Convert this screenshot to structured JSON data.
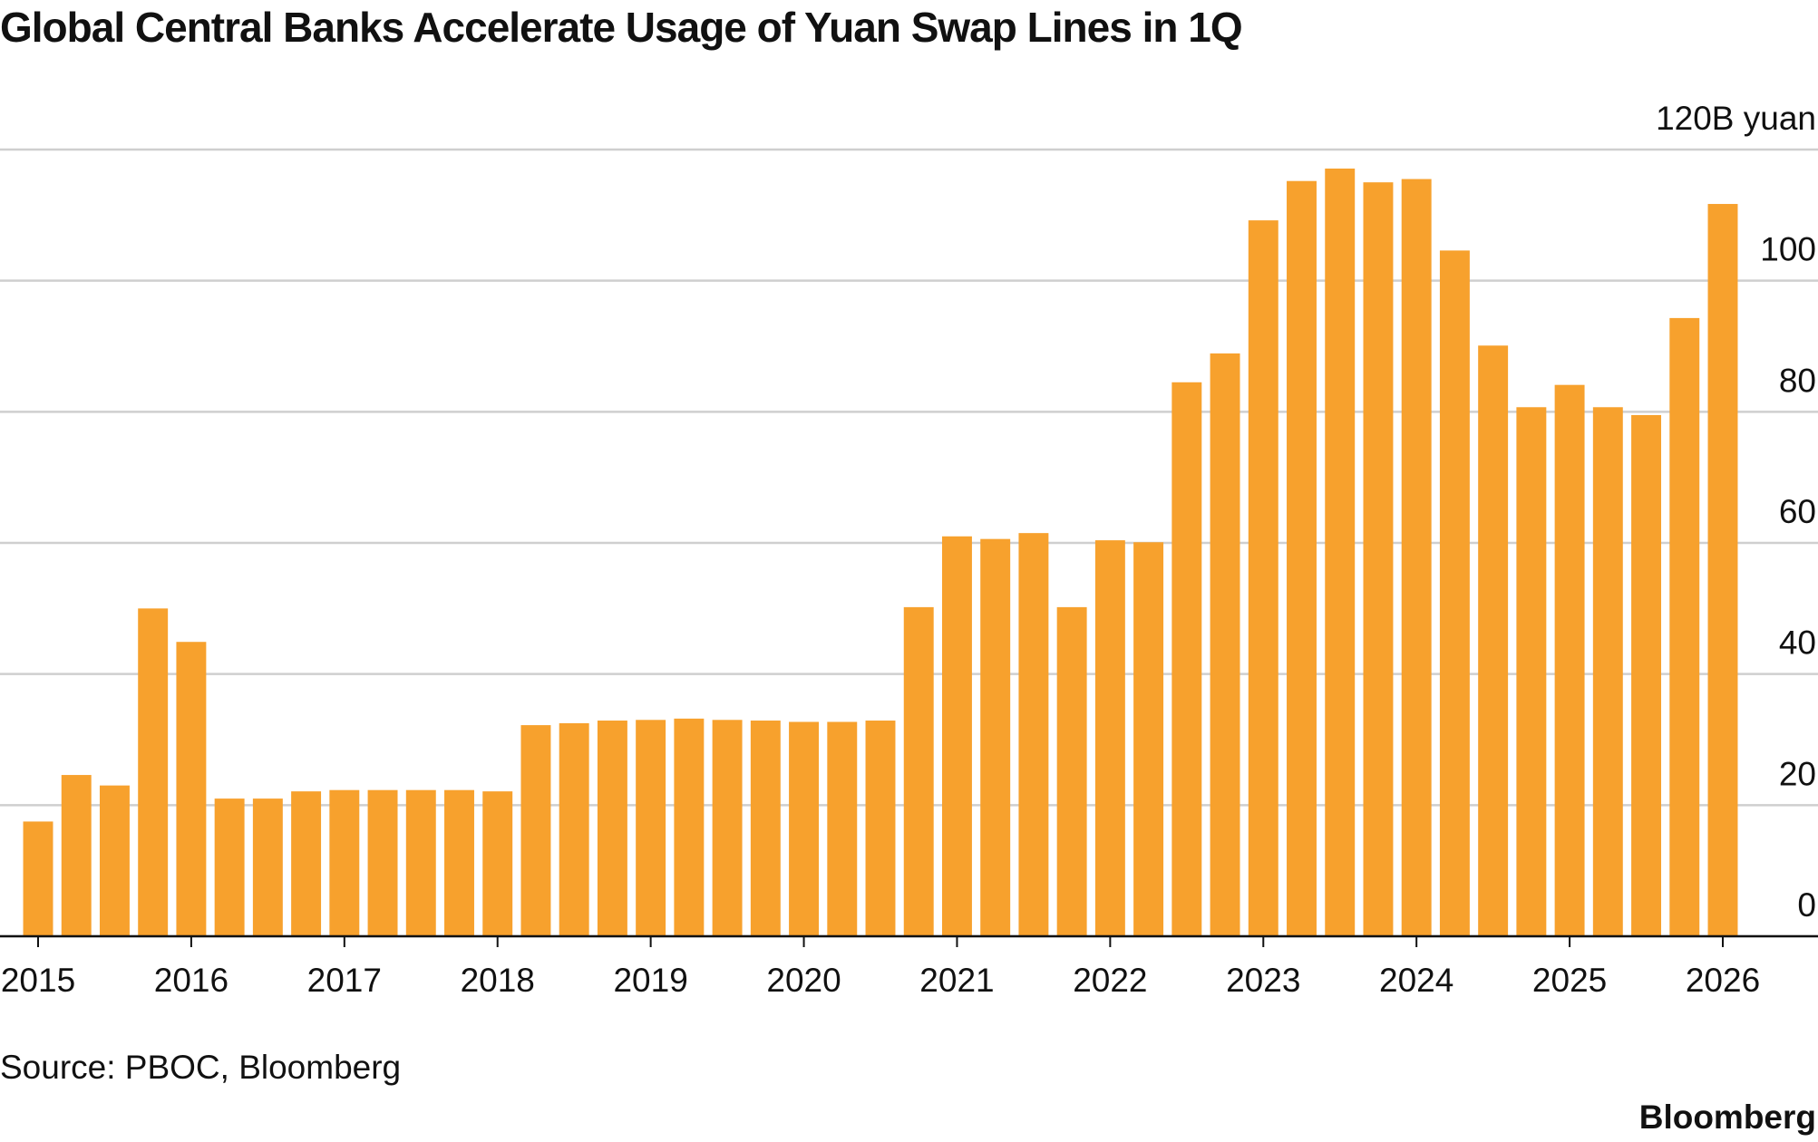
{
  "chart_data": {
    "type": "bar",
    "title": "Global Central Banks Accelerate Usage of Yuan Swap Lines in 1Q",
    "categories": [
      "2015",
      null,
      null,
      null,
      "2016",
      null,
      null,
      null,
      "2017",
      null,
      null,
      null,
      "2018",
      null,
      null,
      null,
      "2019",
      null,
      null,
      null,
      "2020",
      null,
      null,
      null,
      "2021",
      null,
      null,
      null,
      "2022",
      null,
      null,
      null,
      "2023",
      null,
      null,
      null,
      "2024",
      null,
      null,
      null,
      "2025",
      null,
      null,
      null,
      "2026"
    ],
    "values": [
      17.5,
      24.6,
      23,
      50,
      44.9,
      21,
      21,
      22.1,
      22.3,
      22.3,
      22.3,
      22.3,
      22.1,
      32.2,
      32.5,
      32.9,
      33,
      33.2,
      33,
      32.9,
      32.7,
      32.7,
      32.9,
      50.2,
      61,
      60.6,
      61.5,
      50.2,
      60.4,
      60.1,
      84.5,
      88.9,
      109.2,
      115.2,
      117.1,
      115,
      115.5,
      104.6,
      90.1,
      80.7,
      84.1,
      80.7,
      79.5,
      94.3,
      111.7
    ],
    "color": "#f7a12d",
    "ylim": [
      0,
      120
    ],
    "yticks": [
      0,
      20,
      40,
      60,
      80,
      100,
      {
        "value": 120,
        "label": "120B yuan"
      }
    ],
    "grid": true,
    "source": "Source: PBOC, Bloomberg",
    "brand": "Bloomberg"
  }
}
